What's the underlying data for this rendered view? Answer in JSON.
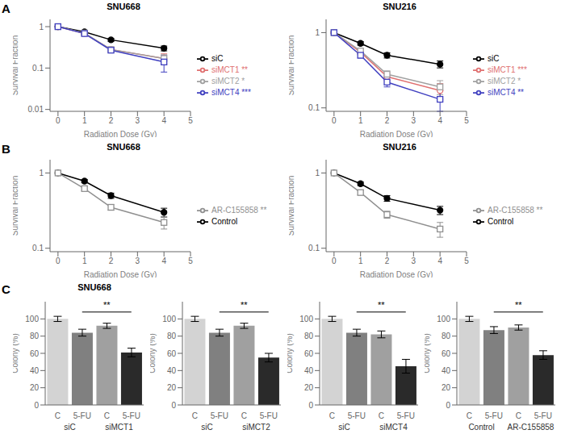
{
  "chart_data": [
    {
      "type": "line",
      "title": "SNU668",
      "annotations": [
        {
          "text": "A"
        }
      ],
      "xlabel": "Radiation Dose (Gy)",
      "ylabel": "Survival Fraction",
      "x": [
        0,
        1,
        2,
        4
      ],
      "xlim": [
        -0.3,
        5
      ],
      "xticks": [
        0,
        1,
        2,
        3,
        4,
        5
      ],
      "ylim": [
        0.009,
        1.5
      ],
      "yticks": [
        0.01,
        0.1,
        1
      ],
      "log": "y",
      "grid": false,
      "legend": "right",
      "series": [
        {
          "name": "siC",
          "color": "#000000",
          "marker": "circle",
          "values": [
            1.0,
            0.75,
            0.48,
            0.3
          ],
          "errors": [
            0.03,
            0.04,
            0.04,
            0.04
          ]
        },
        {
          "name": "siMCT1 **",
          "color": "#e07070",
          "marker": "open_circle",
          "values": [
            1.0,
            0.68,
            0.28,
            0.17
          ],
          "errors": [
            0.03,
            0.04,
            0.03,
            0.05
          ]
        },
        {
          "name": "siMCT2 *",
          "color": "#a0a0a0",
          "marker": "open_square",
          "values": [
            1.0,
            0.7,
            0.28,
            0.17
          ],
          "errors": [
            0.03,
            0.04,
            0.03,
            0.04
          ]
        },
        {
          "name": "siMCT4 ***",
          "color": "#4040c0",
          "marker": "open_square",
          "values": [
            1.0,
            0.68,
            0.27,
            0.14
          ],
          "errors": [
            0.03,
            0.04,
            0.03,
            0.06
          ]
        }
      ]
    },
    {
      "type": "line",
      "title": "SNU216",
      "xlabel": "Radiation Dose (Gy)",
      "ylabel": "Survival Fraction",
      "x": [
        0,
        1,
        2,
        4
      ],
      "xlim": [
        -0.3,
        5
      ],
      "xticks": [
        0,
        1,
        2,
        3,
        4,
        5
      ],
      "ylim": [
        0.09,
        1.5
      ],
      "yticks": [
        0.1,
        1
      ],
      "log": "y",
      "grid": false,
      "legend": "right",
      "series": [
        {
          "name": "siC",
          "color": "#000000",
          "marker": "circle",
          "values": [
            1.0,
            0.72,
            0.5,
            0.38
          ],
          "errors": [
            0.03,
            0.04,
            0.04,
            0.04
          ]
        },
        {
          "name": "siMCT1 ***",
          "color": "#e07070",
          "marker": "open_circle",
          "values": [
            1.0,
            0.55,
            0.26,
            0.17
          ],
          "errors": [
            0.03,
            0.04,
            0.03,
            0.04
          ]
        },
        {
          "name": "siMCT2 *",
          "color": "#a0a0a0",
          "marker": "open_square",
          "values": [
            1.0,
            0.57,
            0.28,
            0.19
          ],
          "errors": [
            0.03,
            0.04,
            0.03,
            0.04
          ]
        },
        {
          "name": "siMCT4 **",
          "color": "#4040c0",
          "marker": "open_square",
          "values": [
            1.0,
            0.5,
            0.22,
            0.13
          ],
          "errors": [
            0.03,
            0.04,
            0.03,
            0.04
          ]
        }
      ]
    },
    {
      "type": "line",
      "title": "SNU668",
      "annotations": [
        {
          "text": "B"
        }
      ],
      "xlabel": "Radiation Dose (Gy)",
      "ylabel": "Survival Fraction",
      "x": [
        0,
        1,
        2,
        4
      ],
      "xlim": [
        -0.3,
        5
      ],
      "xticks": [
        0,
        1,
        2,
        3,
        4,
        5
      ],
      "ylim": [
        0.09,
        1.5
      ],
      "yticks": [
        0.1,
        1
      ],
      "log": "y",
      "grid": false,
      "legend": "right",
      "series": [
        {
          "name": "Control",
          "color": "#000000",
          "marker": "circle",
          "values": [
            1.0,
            0.78,
            0.5,
            0.3
          ],
          "errors": [
            0.03,
            0.04,
            0.04,
            0.04
          ]
        },
        {
          "name": "AR-C155858 **",
          "color": "#909090",
          "marker": "open_square",
          "values": [
            1.0,
            0.62,
            0.35,
            0.22
          ],
          "errors": [
            0.03,
            0.04,
            0.03,
            0.04
          ]
        }
      ]
    },
    {
      "type": "line",
      "title": "SNU216",
      "xlabel": "Radiation Dose (Gy)",
      "ylabel": "Survival Fraction",
      "x": [
        0,
        1,
        2,
        4
      ],
      "xlim": [
        -0.3,
        5
      ],
      "xticks": [
        0,
        1,
        2,
        3,
        4,
        5
      ],
      "ylim": [
        0.09,
        1.5
      ],
      "yticks": [
        0.1,
        1
      ],
      "log": "y",
      "grid": false,
      "legend": "right",
      "series": [
        {
          "name": "Control",
          "color": "#000000",
          "marker": "circle",
          "values": [
            1.0,
            0.72,
            0.46,
            0.32
          ],
          "errors": [
            0.03,
            0.04,
            0.04,
            0.04
          ]
        },
        {
          "name": "AR-C155858 **",
          "color": "#909090",
          "marker": "open_square",
          "values": [
            1.0,
            0.55,
            0.28,
            0.18
          ],
          "errors": [
            0.03,
            0.04,
            0.03,
            0.04
          ]
        }
      ]
    },
    {
      "type": "bar",
      "title": "SNU668",
      "annotations": [
        {
          "text": "C"
        },
        {
          "text": "**",
          "y": 108
        }
      ],
      "ylabel": "Colony (%)",
      "categories": [
        "C",
        "5-FU",
        "C",
        "5-FU"
      ],
      "group_labels": [
        "siC",
        "siMCT1"
      ],
      "values": [
        100,
        84,
        92,
        61
      ],
      "errors": [
        3,
        4,
        3,
        5
      ],
      "colors": [
        "#d3d3d3",
        "#808080",
        "#a0a0a0",
        "#2a2a2a"
      ],
      "ylim": [
        0,
        120
      ],
      "yticks": [
        0,
        20,
        40,
        60,
        80,
        100
      ],
      "grid": false
    },
    {
      "type": "bar",
      "annotations": [
        {
          "text": "**",
          "y": 108
        }
      ],
      "ylabel": "Colony (%)",
      "categories": [
        "C",
        "5-FU",
        "C",
        "5-FU"
      ],
      "group_labels": [
        "siC",
        "siMCT2"
      ],
      "values": [
        100,
        84,
        92,
        55
      ],
      "errors": [
        3,
        4,
        3,
        5
      ],
      "colors": [
        "#d3d3d3",
        "#808080",
        "#a0a0a0",
        "#2a2a2a"
      ],
      "ylim": [
        0,
        120
      ],
      "yticks": [
        0,
        20,
        40,
        60,
        80,
        100
      ],
      "grid": false
    },
    {
      "type": "bar",
      "annotations": [
        {
          "text": "**",
          "y": 108
        }
      ],
      "ylabel": "Colony (%)",
      "categories": [
        "C",
        "5-FU",
        "C",
        "5-FU"
      ],
      "group_labels": [
        "siC",
        "siMCT4"
      ],
      "values": [
        100,
        84,
        82,
        45
      ],
      "errors": [
        3,
        4,
        4,
        8
      ],
      "colors": [
        "#d3d3d3",
        "#808080",
        "#a0a0a0",
        "#2a2a2a"
      ],
      "ylim": [
        0,
        120
      ],
      "yticks": [
        0,
        20,
        40,
        60,
        80,
        100
      ],
      "grid": false
    },
    {
      "type": "bar",
      "annotations": [
        {
          "text": "**",
          "y": 108
        }
      ],
      "ylabel": "Colony (%)",
      "categories": [
        "C",
        "5-FU",
        "C",
        "5-FU"
      ],
      "group_labels": [
        "Control",
        "AR-C155858"
      ],
      "values": [
        100,
        87,
        90,
        58
      ],
      "errors": [
        3,
        4,
        3,
        5
      ],
      "colors": [
        "#d3d3d3",
        "#808080",
        "#a0a0a0",
        "#2a2a2a"
      ],
      "ylim": [
        0,
        120
      ],
      "yticks": [
        0,
        20,
        40,
        60,
        80,
        100
      ],
      "grid": false
    }
  ]
}
